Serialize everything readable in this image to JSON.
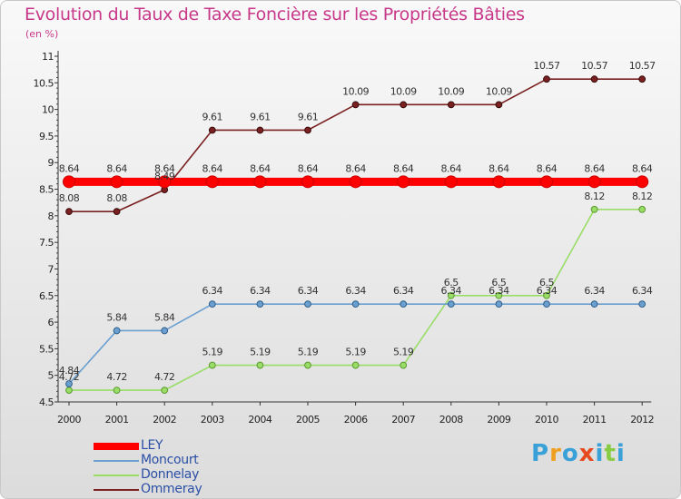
{
  "title": "Evolution du Taux de Taxe Foncière sur les Propriétés Bâties",
  "subtitle": "(en %)",
  "logo_text": "Proxiti",
  "chart_data": {
    "type": "line",
    "title": "Evolution du Taux de Taxe Foncière sur les Propriétés Bâties",
    "ylabel": "(en %)",
    "xlabel": "",
    "x": [
      "2000",
      "2001",
      "2002",
      "2003",
      "2004",
      "2005",
      "2006",
      "2007",
      "2008",
      "2009",
      "2010",
      "2011",
      "2012"
    ],
    "ylim": [
      4.5,
      11
    ],
    "yticks": [
      "4.5",
      "5",
      "5.5",
      "6",
      "6.5",
      "7",
      "7.5",
      "8",
      "8.5",
      "9",
      "9.5",
      "10",
      "10.5",
      "11"
    ],
    "grid": false,
    "legend_position": "bottom-left",
    "series": [
      {
        "name": "LEY",
        "color": "#ff0000",
        "values": [
          8.64,
          8.64,
          8.64,
          8.64,
          8.64,
          8.64,
          8.64,
          8.64,
          8.64,
          8.64,
          8.64,
          8.64,
          8.64
        ],
        "labels": [
          "8.64",
          "8.64",
          "8.64",
          "8.64",
          "8.64",
          "8.64",
          "8.64",
          "8.64",
          "8.64",
          "8.64",
          "8.64",
          "8.64",
          "8.64"
        ]
      },
      {
        "name": "Moncourt",
        "color": "#6a9fd0",
        "values": [
          4.84,
          5.84,
          5.84,
          6.34,
          6.34,
          6.34,
          6.34,
          6.34,
          6.34,
          6.34,
          6.34,
          6.34,
          6.34
        ],
        "labels": [
          "4.84",
          "5.84",
          "5.84",
          "6.34",
          "6.34",
          "6.34",
          "6.34",
          "6.34",
          "6.34",
          "6.34",
          "6.34",
          "6.34",
          "6.34"
        ]
      },
      {
        "name": "Donnelay",
        "color": "#99dd66",
        "values": [
          4.72,
          4.72,
          4.72,
          5.19,
          5.19,
          5.19,
          5.19,
          5.19,
          6.5,
          6.5,
          6.5,
          8.12,
          8.12
        ],
        "labels": [
          "4.72",
          "4.72",
          "4.72",
          "5.19",
          "5.19",
          "5.19",
          "5.19",
          "5.19",
          "6.5",
          "6.5",
          "6.5",
          "8.12",
          "8.12"
        ]
      },
      {
        "name": "Ommeray",
        "color": "#7a2020",
        "values": [
          8.08,
          8.08,
          8.49,
          9.61,
          9.61,
          9.61,
          10.09,
          10.09,
          10.09,
          10.09,
          10.57,
          10.57,
          10.57
        ],
        "labels": [
          "8.08",
          "8.08",
          "8.49",
          "9.61",
          "9.61",
          "9.61",
          "10.09",
          "10.09",
          "10.09",
          "10.09",
          "10.57",
          "10.57",
          "10.57"
        ]
      }
    ]
  }
}
